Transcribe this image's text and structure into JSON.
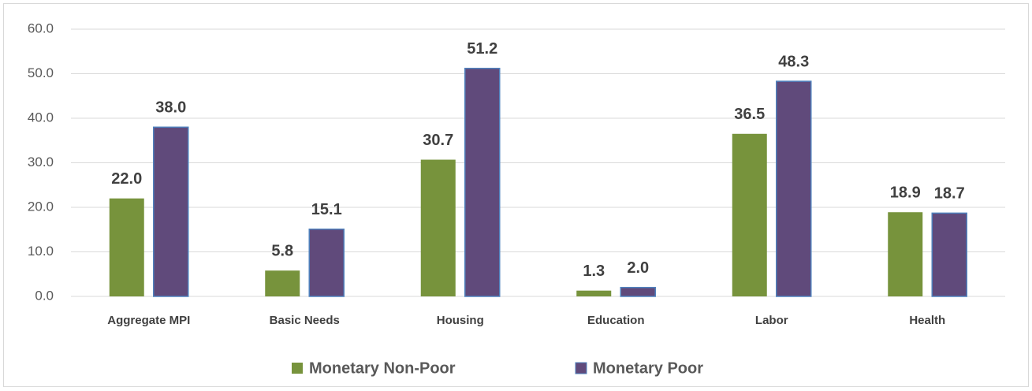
{
  "chart_data": {
    "type": "bar",
    "categories": [
      "Aggregate MPI",
      "Basic Needs",
      "Housing",
      "Education",
      "Labor",
      "Health"
    ],
    "series": [
      {
        "name": "Monetary Non-Poor",
        "color": "#77933c",
        "values": [
          22.0,
          5.8,
          30.7,
          1.3,
          36.5,
          18.9
        ],
        "value_labels": [
          "22.0",
          "5.8",
          "30.7",
          "1.3",
          "36.5",
          "18.9"
        ]
      },
      {
        "name": "Monetary Poor",
        "color": "#604a7b",
        "values": [
          38.0,
          15.1,
          51.2,
          2.0,
          48.3,
          18.7
        ],
        "value_labels": [
          "38.0",
          "15.1",
          "51.2",
          "2.0",
          "48.3",
          "18.7"
        ]
      }
    ],
    "ylim": [
      0,
      60
    ],
    "yticks": [
      {
        "value": 0,
        "label": "0.0"
      },
      {
        "value": 10,
        "label": "10.0"
      },
      {
        "value": 20,
        "label": "20.0"
      },
      {
        "value": 30,
        "label": "30.0"
      },
      {
        "value": 40,
        "label": "40.0"
      },
      {
        "value": 50,
        "label": "50.0"
      },
      {
        "value": 60,
        "label": "60.0"
      }
    ],
    "grid": true,
    "legend": "bottom"
  }
}
